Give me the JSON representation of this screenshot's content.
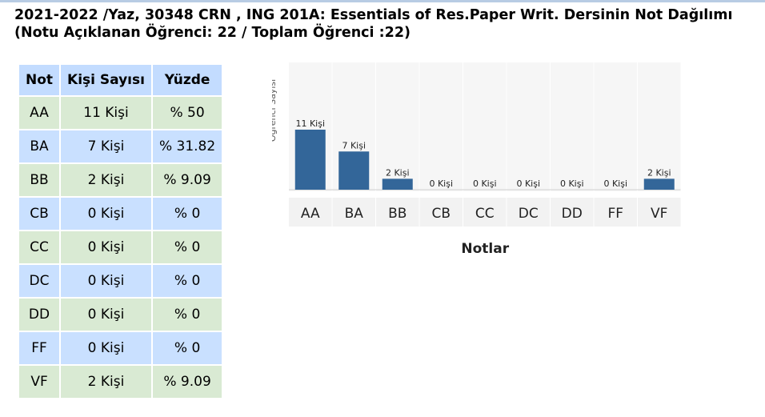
{
  "title_line1": "2021-2022 /Yaz, 30348 CRN , ING 201A: Essentials of Res.Paper Writ. Dersinin Not Dağılımı",
  "title_line2": "(Notu Açıklanan Öğrenci: 22 / Toplam Öğrenci :22)",
  "table": {
    "headers": [
      "Not",
      "Kişi Sayısı",
      "Yüzde"
    ],
    "rows": [
      {
        "grade": "AA",
        "count": "11 Kişi",
        "percent": "% 50"
      },
      {
        "grade": "BA",
        "count": "7 Kişi",
        "percent": "% 31.82"
      },
      {
        "grade": "BB",
        "count": "2 Kişi",
        "percent": "% 9.09"
      },
      {
        "grade": "CB",
        "count": "0 Kişi",
        "percent": "% 0"
      },
      {
        "grade": "CC",
        "count": "0 Kişi",
        "percent": "% 0"
      },
      {
        "grade": "DC",
        "count": "0 Kişi",
        "percent": "% 0"
      },
      {
        "grade": "DD",
        "count": "0 Kişi",
        "percent": "% 0"
      },
      {
        "grade": "FF",
        "count": "0 Kişi",
        "percent": "% 0"
      },
      {
        "grade": "VF",
        "count": "2 Kişi",
        "percent": "% 9.09"
      }
    ]
  },
  "colors": {
    "bar": "#336699",
    "row_green": "#d9ead3",
    "row_blue": "#c9e0ff",
    "header": "#c3dcff"
  },
  "chart_data": {
    "type": "bar",
    "categories": [
      "AA",
      "BA",
      "BB",
      "CB",
      "CC",
      "DC",
      "DD",
      "FF",
      "VF"
    ],
    "values": [
      11,
      7,
      2,
      0,
      0,
      0,
      0,
      0,
      2
    ],
    "data_labels": [
      "11 Kişi",
      "7 Kişi",
      "2 Kişi",
      "0 Kişi",
      "0 Kişi",
      "0 Kişi",
      "0 Kişi",
      "0 Kişi",
      "2 Kişi"
    ],
    "xlabel": "Notlar",
    "ylabel": "Öğrenci Sayısı",
    "ylim": [
      0,
      11
    ],
    "grid": false,
    "legend": "none"
  }
}
